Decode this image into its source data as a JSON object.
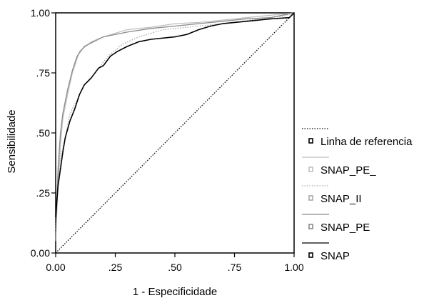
{
  "chart_data": {
    "type": "line",
    "xlabel": "1 - Especificidade",
    "ylabel": "Sensibilidade",
    "xlim": [
      0,
      1
    ],
    "ylim": [
      0,
      1
    ],
    "x_ticks": [
      "0.00",
      ".25",
      ".50",
      ".75",
      "1.00"
    ],
    "y_ticks": [
      "0.00",
      ".25",
      ".50",
      ".75",
      "1.00"
    ],
    "grid": false,
    "legend_position": "right",
    "series": [
      {
        "name": "Linha de referencia",
        "color": "#000000",
        "style": "dotted",
        "points": [
          [
            0,
            0
          ],
          [
            1,
            1
          ]
        ]
      },
      {
        "name": "SNAP_PE_",
        "color": "#c0c0c0",
        "style": "solid",
        "points": [
          [
            0,
            0.05
          ],
          [
            0.01,
            0.3
          ],
          [
            0.02,
            0.45
          ],
          [
            0.03,
            0.56
          ],
          [
            0.05,
            0.66
          ],
          [
            0.07,
            0.75
          ],
          [
            0.1,
            0.84
          ],
          [
            0.15,
            0.88
          ],
          [
            0.2,
            0.9
          ],
          [
            0.3,
            0.93
          ],
          [
            0.4,
            0.94
          ],
          [
            0.5,
            0.955
          ],
          [
            0.6,
            0.96
          ],
          [
            0.7,
            0.97
          ],
          [
            0.8,
            0.98
          ],
          [
            0.9,
            0.99
          ],
          [
            1.0,
            1.0
          ]
        ]
      },
      {
        "name": "SNAP_II",
        "color": "#a8a8a8",
        "style": "dotted",
        "points": [
          [
            0,
            0.1
          ],
          [
            0.01,
            0.28
          ],
          [
            0.02,
            0.4
          ],
          [
            0.04,
            0.48
          ],
          [
            0.06,
            0.58
          ],
          [
            0.08,
            0.62
          ],
          [
            0.1,
            0.66
          ],
          [
            0.12,
            0.7
          ],
          [
            0.15,
            0.73
          ],
          [
            0.18,
            0.77
          ],
          [
            0.22,
            0.82
          ],
          [
            0.28,
            0.87
          ],
          [
            0.35,
            0.9
          ],
          [
            0.45,
            0.93
          ],
          [
            0.55,
            0.94
          ],
          [
            0.65,
            0.95
          ],
          [
            0.75,
            0.96
          ],
          [
            0.85,
            0.975
          ],
          [
            0.95,
            0.985
          ],
          [
            1.0,
            1.0
          ]
        ]
      },
      {
        "name": "SNAP_PE",
        "color": "#8a8a8a",
        "style": "solid",
        "points": [
          [
            0,
            0.05
          ],
          [
            0.01,
            0.35
          ],
          [
            0.02,
            0.5
          ],
          [
            0.03,
            0.58
          ],
          [
            0.05,
            0.68
          ],
          [
            0.07,
            0.76
          ],
          [
            0.09,
            0.82
          ],
          [
            0.12,
            0.86
          ],
          [
            0.16,
            0.88
          ],
          [
            0.2,
            0.9
          ],
          [
            0.3,
            0.92
          ],
          [
            0.4,
            0.935
          ],
          [
            0.5,
            0.945
          ],
          [
            0.6,
            0.955
          ],
          [
            0.7,
            0.965
          ],
          [
            0.8,
            0.975
          ],
          [
            0.9,
            0.98
          ],
          [
            1.0,
            1.0
          ]
        ]
      },
      {
        "name": "SNAP",
        "color": "#000000",
        "style": "solid",
        "points": [
          [
            0,
            0.15
          ],
          [
            0.01,
            0.28
          ],
          [
            0.02,
            0.35
          ],
          [
            0.03,
            0.42
          ],
          [
            0.04,
            0.48
          ],
          [
            0.06,
            0.55
          ],
          [
            0.08,
            0.6
          ],
          [
            0.1,
            0.66
          ],
          [
            0.12,
            0.7
          ],
          [
            0.15,
            0.73
          ],
          [
            0.18,
            0.77
          ],
          [
            0.2,
            0.78
          ],
          [
            0.23,
            0.82
          ],
          [
            0.26,
            0.84
          ],
          [
            0.3,
            0.86
          ],
          [
            0.35,
            0.88
          ],
          [
            0.4,
            0.89
          ],
          [
            0.5,
            0.9
          ],
          [
            0.55,
            0.91
          ],
          [
            0.6,
            0.93
          ],
          [
            0.65,
            0.945
          ],
          [
            0.7,
            0.955
          ],
          [
            0.8,
            0.965
          ],
          [
            0.9,
            0.975
          ],
          [
            0.98,
            0.98
          ],
          [
            1.0,
            1.0
          ]
        ]
      }
    ]
  }
}
